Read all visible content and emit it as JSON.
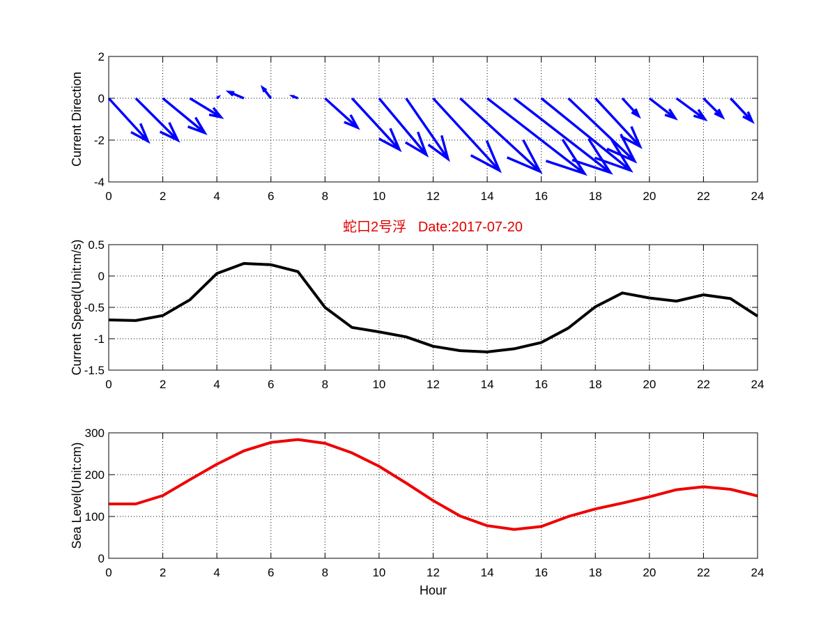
{
  "figure_title": "蛇口2号浮   Date:2017-07-20",
  "colors": {
    "title": "#e00000",
    "arrows": "#0000ff",
    "speed": "#000000",
    "level": "#ee0000",
    "grid": "#000000"
  },
  "chart_data": [
    {
      "type": "quiver",
      "title": "",
      "xlabel": "",
      "ylabel": "Current Direction",
      "xlim": [
        0,
        24
      ],
      "ylim": [
        -4,
        2
      ],
      "xticks": [
        0,
        2,
        4,
        6,
        8,
        10,
        12,
        14,
        16,
        18,
        20,
        22,
        24
      ],
      "yticks": [
        -4,
        -2,
        0,
        2
      ],
      "xtick_labels": [
        "0",
        "2",
        "4",
        "6",
        "8",
        "10",
        "12",
        "14",
        "16",
        "18",
        "20",
        "22",
        "24"
      ],
      "ytick_labels": [
        "-4",
        "-2",
        "0",
        "2"
      ],
      "grid": true,
      "x": [
        0,
        1,
        2,
        3,
        4,
        5,
        6,
        7,
        8,
        9,
        10,
        11,
        12,
        13,
        14,
        15,
        16,
        17,
        18,
        19,
        20,
        21,
        22,
        23
      ],
      "u": [
        1.45,
        1.55,
        1.55,
        1.15,
        0.05,
        -0.55,
        -0.3,
        -0.2,
        1.2,
        1.75,
        1.75,
        1.55,
        2.45,
        2.95,
        3.6,
        3.55,
        3.3,
        2.45,
        1.65,
        0.6,
        0.95,
        1.05,
        0.7,
        0.8
      ],
      "v": [
        -2.05,
        -2.0,
        -1.65,
        -0.9,
        0.05,
        0.3,
        0.5,
        0.1,
        -1.4,
        -2.45,
        -2.7,
        -2.9,
        -3.45,
        -3.5,
        -3.6,
        -3.55,
        -3.45,
        -3.0,
        -2.3,
        -0.85,
        -0.95,
        -1.0,
        -0.9,
        -1.1
      ]
    },
    {
      "type": "line",
      "title": "",
      "xlabel": "",
      "ylabel": "Current Speed(Unit:m/s)",
      "xlim": [
        0,
        24
      ],
      "ylim": [
        -1.5,
        0.5
      ],
      "xticks": [
        0,
        2,
        4,
        6,
        8,
        10,
        12,
        14,
        16,
        18,
        20,
        22,
        24
      ],
      "yticks": [
        -1.5,
        -1,
        -0.5,
        0,
        0.5
      ],
      "xtick_labels": [
        "0",
        "2",
        "4",
        "6",
        "8",
        "10",
        "12",
        "14",
        "16",
        "18",
        "20",
        "22",
        "24"
      ],
      "ytick_labels": [
        "-1.5",
        "-1",
        "-0.5",
        "0",
        "0.5"
      ],
      "grid": true,
      "x": [
        0,
        1,
        2,
        3,
        4,
        5,
        6,
        7,
        8,
        9,
        10,
        11,
        12,
        13,
        14,
        15,
        16,
        17,
        18,
        19,
        20,
        21,
        22,
        23,
        24
      ],
      "series": [
        {
          "values": [
            -0.7,
            -0.71,
            -0.63,
            -0.38,
            0.04,
            0.2,
            0.18,
            0.07,
            -0.5,
            -0.82,
            -0.89,
            -0.97,
            -1.12,
            -1.19,
            -1.21,
            -1.16,
            -1.06,
            -0.83,
            -0.49,
            -0.27,
            -0.35,
            -0.4,
            -0.3,
            -0.36,
            -0.64
          ]
        }
      ]
    },
    {
      "type": "line",
      "title": "",
      "xlabel": "Hour",
      "ylabel": "Sea Level(Unit:cm)",
      "xlim": [
        0,
        24
      ],
      "ylim": [
        0,
        300
      ],
      "xticks": [
        0,
        2,
        4,
        6,
        8,
        10,
        12,
        14,
        16,
        18,
        20,
        22,
        24
      ],
      "yticks": [
        0,
        100,
        200,
        300
      ],
      "xtick_labels": [
        "0",
        "2",
        "4",
        "6",
        "8",
        "10",
        "12",
        "14",
        "16",
        "18",
        "20",
        "22",
        "24"
      ],
      "ytick_labels": [
        "0",
        "100",
        "200",
        "300"
      ],
      "grid": true,
      "x": [
        0,
        1,
        2,
        3,
        4,
        5,
        6,
        7,
        8,
        9,
        10,
        11,
        12,
        13,
        14,
        15,
        16,
        17,
        18,
        19,
        20,
        21,
        22,
        23,
        24
      ],
      "series": [
        {
          "values": [
            130,
            130,
            150,
            188,
            225,
            257,
            277,
            284,
            275,
            252,
            220,
            180,
            138,
            101,
            78,
            69,
            76,
            100,
            118,
            132,
            147,
            164,
            171,
            165,
            149
          ]
        }
      ]
    }
  ]
}
